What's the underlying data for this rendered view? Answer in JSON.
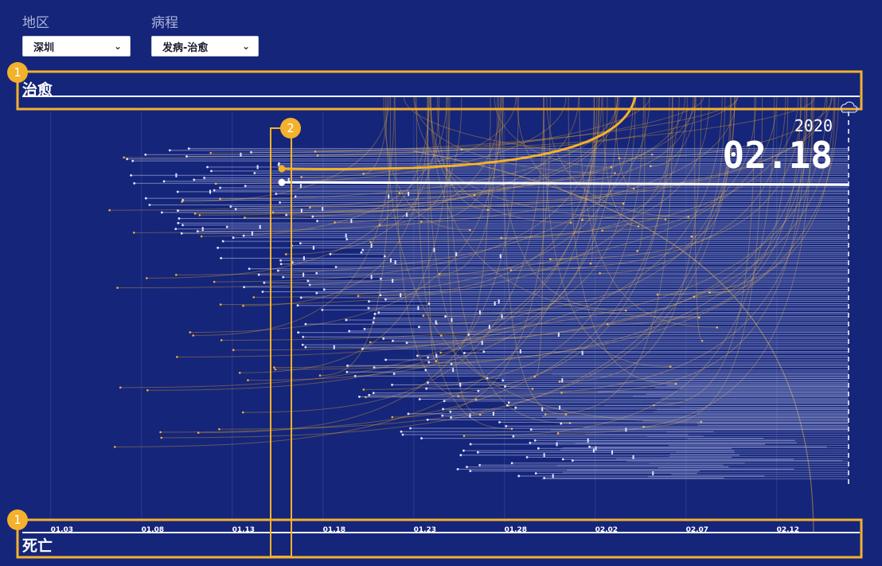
{
  "filters": {
    "region": {
      "label": "地区",
      "value": "深圳"
    },
    "course": {
      "label": "病程",
      "value": "发病-治愈"
    }
  },
  "bands": {
    "top": "治愈",
    "bottom": "死亡"
  },
  "current_date": {
    "year": "2020",
    "day": "02.18"
  },
  "badges": {
    "one": "1",
    "two": "2"
  },
  "colors": {
    "background": "#15257a",
    "cured": "#f3b12c",
    "hospital": "#c7cdef",
    "highlight": "#f3b12c"
  },
  "chart_data": {
    "type": "line",
    "x_ticks": [
      "01.03",
      "01.08",
      "01.13",
      "01.18",
      "01.23",
      "01.28",
      "02.02",
      "02.07",
      "02.12"
    ],
    "x_range": [
      "01.02",
      "02.18"
    ],
    "grid": true
  }
}
